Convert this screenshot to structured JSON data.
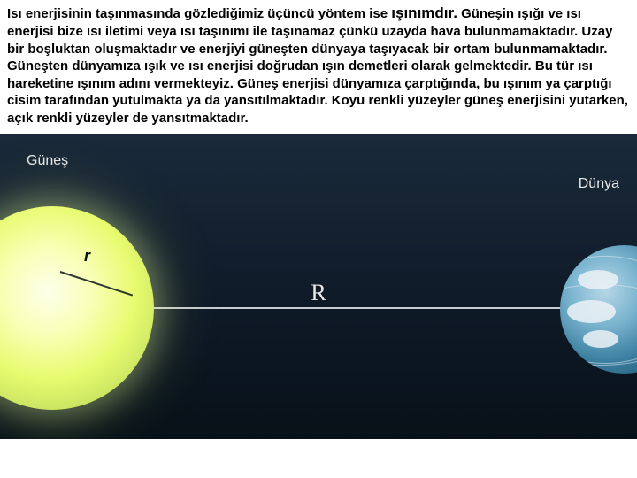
{
  "paragraph": {
    "pre": "Isı enerjisinin taşınmasında gözlediğimiz üçüncü yöntem ise ",
    "emph": "ışınımdır.",
    "post": " Güneşin ışığı ve ısı enerjisi bize ısı iletimi veya ısı taşınımı ile taşınamaz çünkü uzayda hava bulunmamaktadır. Uzay bir boşluktan oluşmaktadır ve enerjiyi güneşten dünyaya taşıyacak bir ortam bulunmamaktadır. Güneşten dünyamıza ışık ve ısı enerjisi doğrudan ışın demetleri olarak gelmektedir. Bu tür ısı hareketine ışınım adını vermekteyiz. Güneş enerjisi dünyamıza çarptığında, bu ışınım ya çarptığı cisim tarafından yutulmakta ya da yansıtılmaktadır. Koyu renkli yüzeyler güneş enerjisini yutarken, açık renkli yüzeyler de yansıtmaktadır."
  },
  "diagram": {
    "sun_label": "Güneş",
    "earth_label": "Dünya",
    "sun_radius_label": "r",
    "distance_label": "R",
    "sun_color_core": "#fdffea",
    "sun_color_mid": "#e7fb6f",
    "sun_color_edge": "#a2b84f",
    "earth_color_light": "#b7d7e8",
    "earth_color_dark": "#1f5876",
    "space_bg_top": "#1a2a3a",
    "space_bg_bottom": "#081118",
    "line_color": "#c6cbcf",
    "label_color": "#e8e8e8"
  }
}
